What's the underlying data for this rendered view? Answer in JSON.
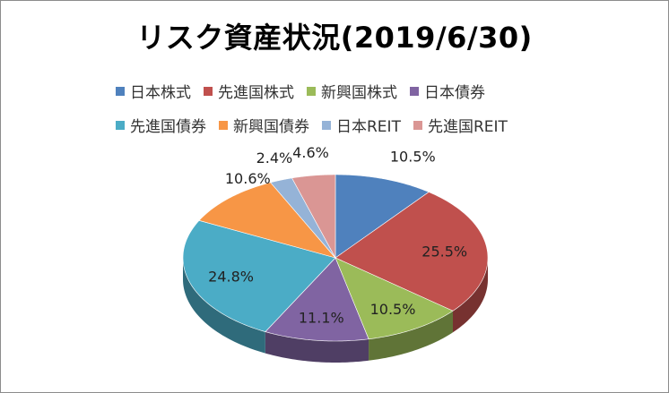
{
  "chart_data": {
    "type": "pie",
    "title": "リスク資産状況(2019/6/30)",
    "categories": [
      "日本株式",
      "先進国株式",
      "新興国株式",
      "日本債券",
      "先進国債券",
      "新興国債券",
      "日本REIT",
      "先進国REIT"
    ],
    "values": [
      10.5,
      25.5,
      10.5,
      11.1,
      24.8,
      10.6,
      2.4,
      4.6
    ],
    "data_labels": [
      "10.5%",
      "25.5%",
      "10.5%",
      "11.1%",
      "24.8%",
      "10.6%",
      "2.4%",
      "4.6%"
    ],
    "colors": [
      "#4f81bd",
      "#c0504d",
      "#9bbb59",
      "#8064a2",
      "#4bacc6",
      "#f79646",
      "#95b3d7",
      "#da9694"
    ],
    "legend_position": "top",
    "style": "3d"
  }
}
